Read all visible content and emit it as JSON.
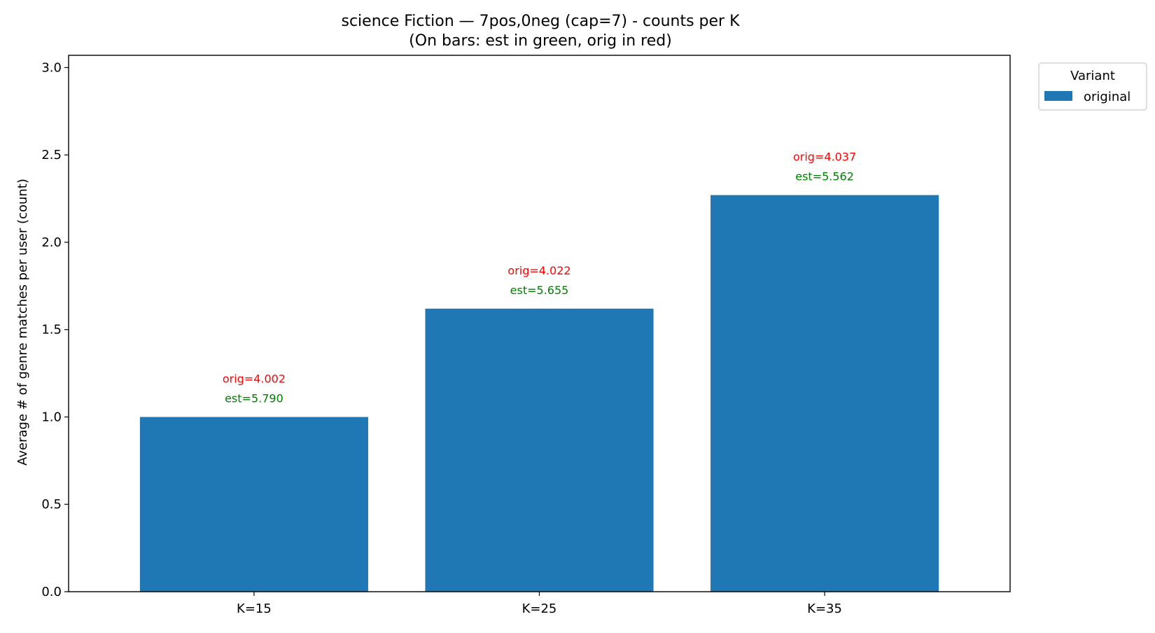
{
  "chart_data": {
    "type": "bar",
    "title": "science Fiction — 7pos,0neg (cap=7) - counts per K",
    "subtitle": "(On bars: est in green, orig in red)",
    "xlabel": "",
    "ylabel": "Average # of genre matches per user (count)",
    "ylim": [
      0,
      3.07
    ],
    "yticks": [
      0.0,
      0.5,
      1.0,
      1.5,
      2.0,
      2.5,
      3.0
    ],
    "ytick_labels": [
      "0.0",
      "0.5",
      "1.0",
      "1.5",
      "2.0",
      "2.5",
      "3.0"
    ],
    "categories": [
      "K=15",
      "K=25",
      "K=35"
    ],
    "series": [
      {
        "name": "original",
        "color": "#1f77b4",
        "values": [
          1.0,
          1.62,
          2.27
        ]
      }
    ],
    "annotations": {
      "orig": [
        "orig=4.002",
        "orig=4.022",
        "orig=4.037"
      ],
      "est": [
        "est=5.790",
        "est=5.655",
        "est=5.562"
      ],
      "orig_color": "#ff0000",
      "est_color": "#008000"
    },
    "legend": {
      "title": "Variant",
      "placement": "outside-top-right",
      "entries": [
        "original"
      ]
    },
    "grid": false
  }
}
